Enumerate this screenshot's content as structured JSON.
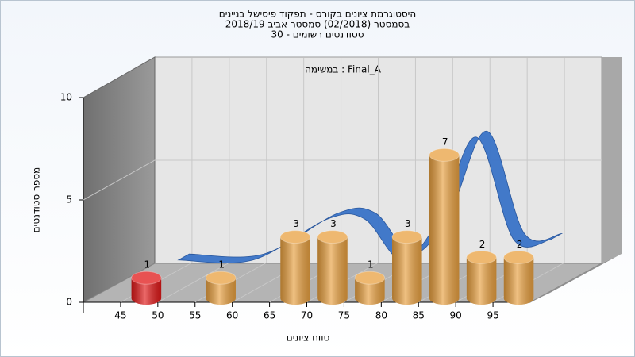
{
  "chart_data": {
    "type": "histogram",
    "title": [
      "היסטוגרמת ציונים בקורס - תפקוד פיסישל בניינים",
      "בסמסטר  (02/2018)  סמסטר אביב 2018/19",
      "סטודנטים רשומים - 30"
    ],
    "annotation": "במשימה : Final_A",
    "xlabel": "טווח ציונים",
    "ylabel": "מספר סטודנטים",
    "bins": [
      45,
      50,
      55,
      60,
      65,
      70,
      75,
      80,
      85,
      90,
      95,
      100
    ],
    "counts": [
      1,
      0,
      1,
      0,
      3,
      3,
      1,
      3,
      7,
      2,
      2
    ],
    "colors": [
      "#e01818",
      "#e8a040",
      "#e8a040",
      "#e8a040",
      "#e8a040",
      "#e8a040",
      "#e8a040",
      "#e8a040",
      "#e8a040",
      "#e8a040",
      "#e8a040"
    ],
    "trend": {
      "x": [
        47.5,
        57.5,
        67.5,
        72.5,
        77.5,
        82.5,
        87.5,
        92.5,
        97.5
      ],
      "values": [
        1,
        1,
        3,
        3,
        1,
        3,
        7,
        2,
        2
      ],
      "color": "#3a74c8"
    },
    "xlim": [
      40,
      100
    ],
    "ylim": [
      0,
      10
    ],
    "xticks": [
      45,
      50,
      55,
      60,
      65,
      70,
      75,
      80,
      85,
      90,
      95
    ],
    "yticks": [
      0,
      5,
      10
    ],
    "grid": true
  }
}
